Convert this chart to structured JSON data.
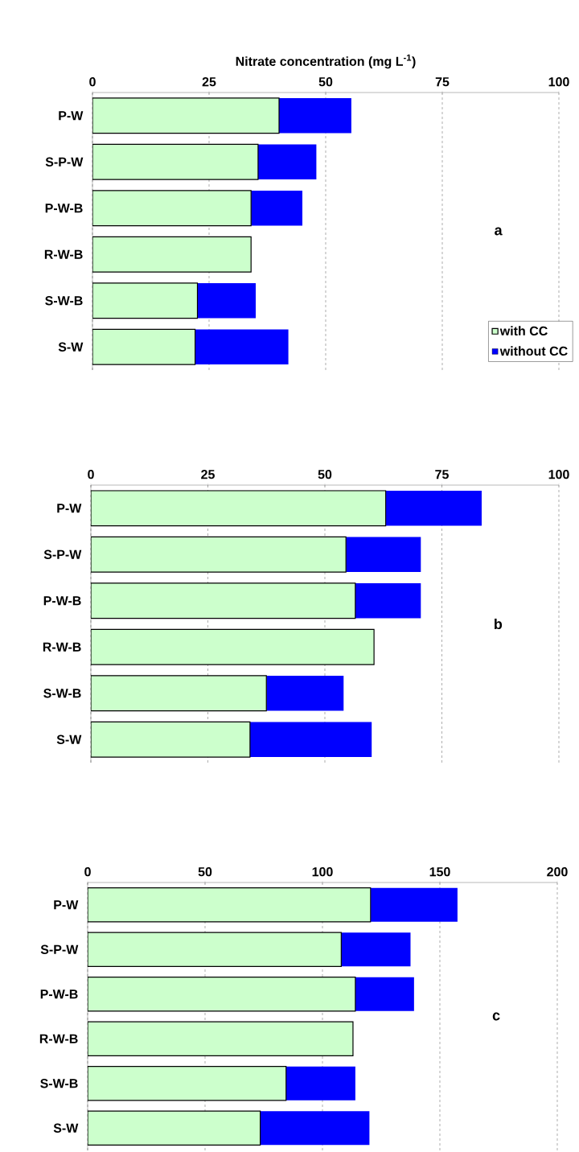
{
  "chart_data": [
    {
      "type": "bar",
      "orientation": "horizontal",
      "stacked": true,
      "xlabel": "Nitrate concentration  (mg L$^{-1}$)",
      "categories": [
        "P-W",
        "S-P-W",
        "P-W-B",
        "R-W-B",
        "S-W-B",
        "S-W"
      ],
      "xlim": [
        0,
        100
      ],
      "xticks": [
        0,
        25,
        50,
        75,
        100
      ],
      "grid": "x",
      "legend": "bottom right",
      "annotations": [
        "a"
      ],
      "series": [
        {
          "name": "with CC",
          "color": "#ccffcc",
          "values": [
            40,
            35.5,
            34,
            34,
            22.5,
            22
          ]
        },
        {
          "name": "without CC",
          "color": "#0000ff",
          "values": [
            15.5,
            12.5,
            11,
            null,
            12.5,
            20
          ]
        }
      ]
    },
    {
      "type": "bar",
      "orientation": "horizontal",
      "stacked": true,
      "categories": [
        "P-W",
        "S-P-W",
        "P-W-B",
        "R-W-B",
        "S-W-B",
        "S-W"
      ],
      "xlim": [
        0,
        100
      ],
      "xticks": [
        0,
        25,
        50,
        75,
        100
      ],
      "grid": "x",
      "annotations": [
        "b"
      ],
      "series": [
        {
          "color": "#ccffcc",
          "values": [
            63,
            54.5,
            56.5,
            60.5,
            37.5,
            34
          ]
        },
        {
          "color": "#0000ff",
          "values": [
            20.5,
            16,
            14,
            null,
            16.5,
            26
          ]
        }
      ]
    },
    {
      "type": "bar",
      "orientation": "horizontal",
      "stacked": true,
      "categories": [
        "P-W",
        "S-P-W",
        "P-W-B",
        "R-W-B",
        "S-W-B",
        "S-W"
      ],
      "xlim": [
        0,
        200
      ],
      "xticks": [
        0,
        50,
        100,
        150,
        200
      ],
      "grid": "x",
      "annotations": [
        "c"
      ],
      "series": [
        {
          "color": "#ccffcc",
          "values": [
            120.5,
            108,
            114,
            113,
            84.5,
            73.5
          ]
        },
        {
          "color": "#0000ff",
          "values": [
            37,
            29.5,
            25,
            null,
            29.5,
            46.5
          ]
        }
      ]
    }
  ]
}
